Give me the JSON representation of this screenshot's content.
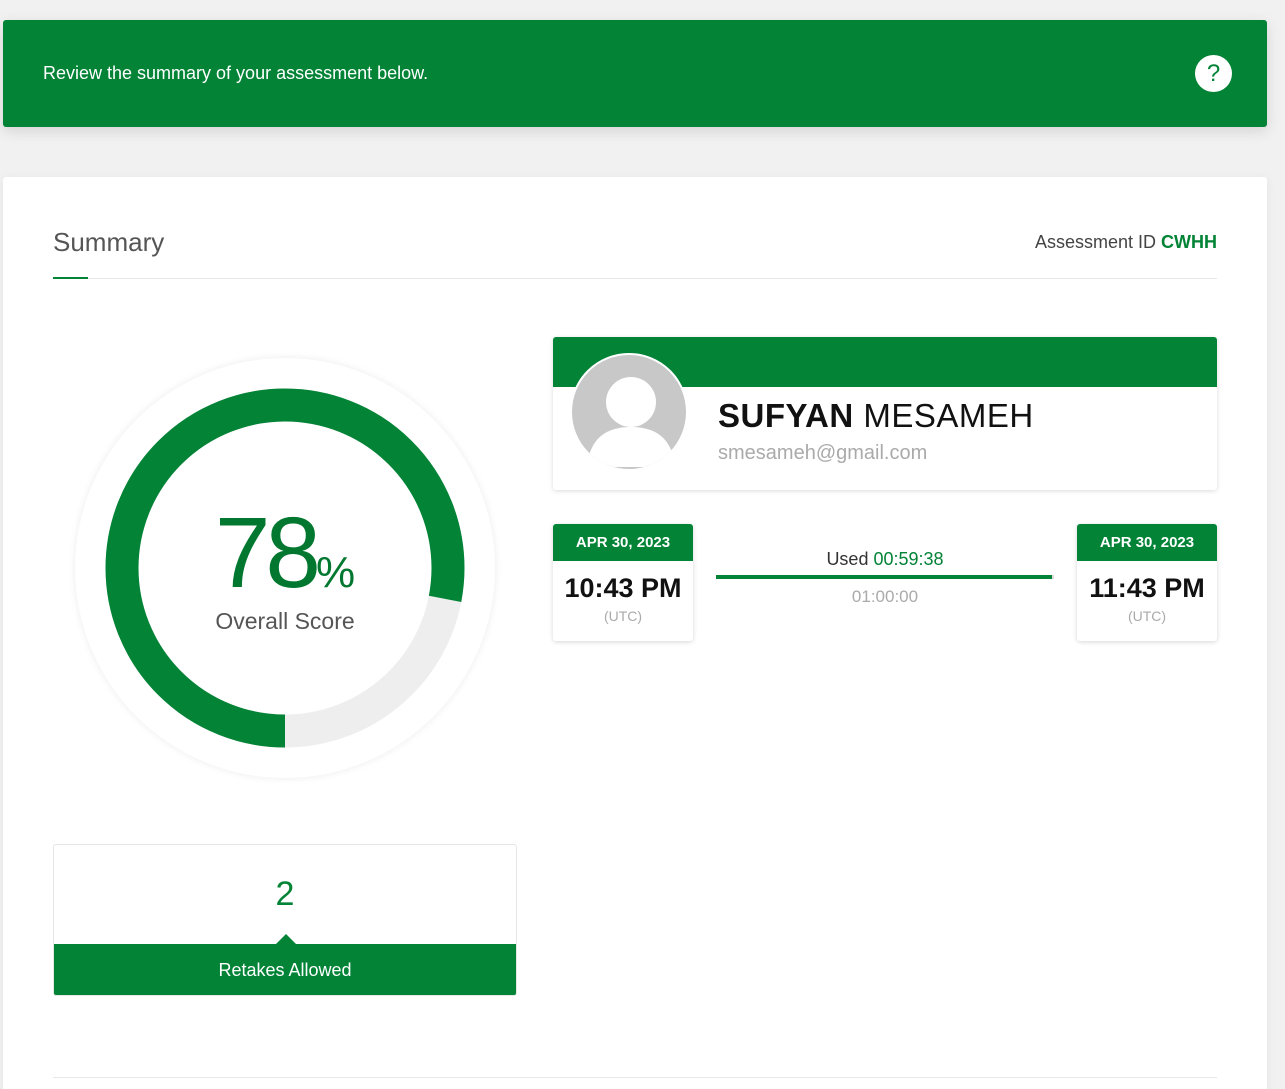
{
  "banner": {
    "message": "Review the summary of your assessment below.",
    "help_label": "?"
  },
  "summary": {
    "title": "Summary",
    "assessment_id_label": "Assessment ID",
    "assessment_id": "CWHH"
  },
  "score": {
    "value": "78",
    "percent_sign": "%",
    "fraction": 0.78,
    "label": "Overall Score"
  },
  "retakes": {
    "count": "2",
    "label": "Retakes Allowed"
  },
  "profile": {
    "first_name": "SUFYAN",
    "last_name": "MESAMEH",
    "email": "smesameh@gmail.com"
  },
  "time": {
    "start": {
      "date": "APR 30, 2023",
      "time": "10:43 PM",
      "zone": "(UTC)"
    },
    "end": {
      "date": "APR 30, 2023",
      "time": "11:43 PM",
      "zone": "(UTC)"
    },
    "used_label": "Used",
    "used": "00:59:38",
    "total": "01:00:00",
    "used_fraction": 0.994
  },
  "colors": {
    "accent": "#028336",
    "track": "#eeeeee"
  }
}
